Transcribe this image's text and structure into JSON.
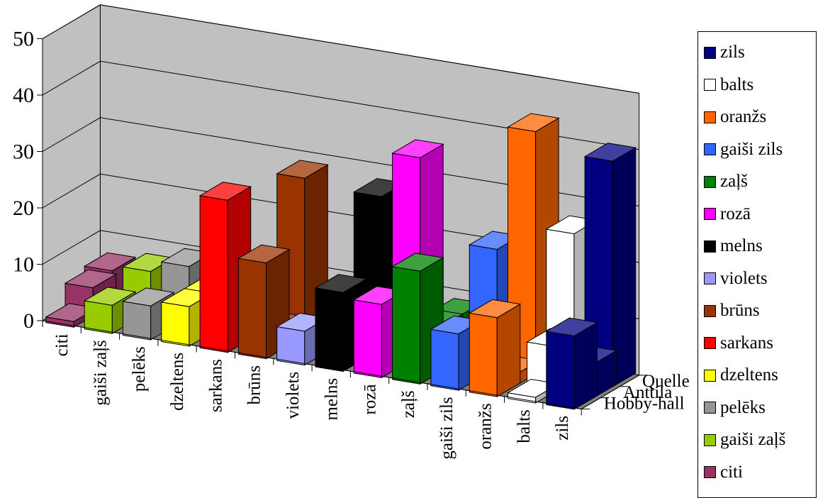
{
  "chart_data": {
    "type": "bar",
    "subtype": "3d-column",
    "categories": [
      "citi",
      "gaiši zaļš",
      "pelēks",
      "dzeltens",
      "sarkans",
      "brūns",
      "violets",
      "melns",
      "rozā",
      "zaļš",
      "gaiši zils",
      "oranžs",
      "balts",
      "zils"
    ],
    "series": [
      {
        "name": "Hobby-hall",
        "values": [
          1,
          5,
          6,
          7,
          27,
          17,
          6,
          14,
          13,
          20,
          10,
          14,
          1,
          13
        ]
      },
      {
        "name": "Anttila",
        "values": [
          5,
          0,
          0,
          7,
          3,
          3,
          4,
          6,
          4,
          8,
          3,
          2,
          8,
          6
        ]
      },
      {
        "name": "Quelle",
        "values": [
          6,
          7,
          9,
          0,
          0,
          28,
          0,
          27,
          35,
          8,
          21,
          43,
          26,
          40
        ]
      }
    ],
    "ylim": [
      0,
      50
    ],
    "yticks": [
      0,
      10,
      20,
      30,
      40,
      50
    ],
    "grid": true,
    "legend_position": "right"
  },
  "legend": [
    {
      "label": "zils",
      "color": "#000080"
    },
    {
      "label": "balts",
      "color": "#ffffff"
    },
    {
      "label": "oranžs",
      "color": "#ff6600"
    },
    {
      "label": "gaiši zils",
      "color": "#3366ff"
    },
    {
      "label": "zaļš",
      "color": "#008000"
    },
    {
      "label": "rozā",
      "color": "#ff00ff"
    },
    {
      "label": "melns",
      "color": "#000000"
    },
    {
      "label": "violets",
      "color": "#9999ff"
    },
    {
      "label": "brūns",
      "color": "#993300"
    },
    {
      "label": "sarkans",
      "color": "#ff0000"
    },
    {
      "label": "dzeltens",
      "color": "#ffff00"
    },
    {
      "label": "pelēks",
      "color": "#969696"
    },
    {
      "label": "gaiši zaļš",
      "color": "#99cc00"
    },
    {
      "label": "citi",
      "color": "#993366"
    }
  ],
  "colors": {
    "back_wall": "#c0c0c0",
    "floor": "#808080",
    "gridline": "#000000"
  }
}
